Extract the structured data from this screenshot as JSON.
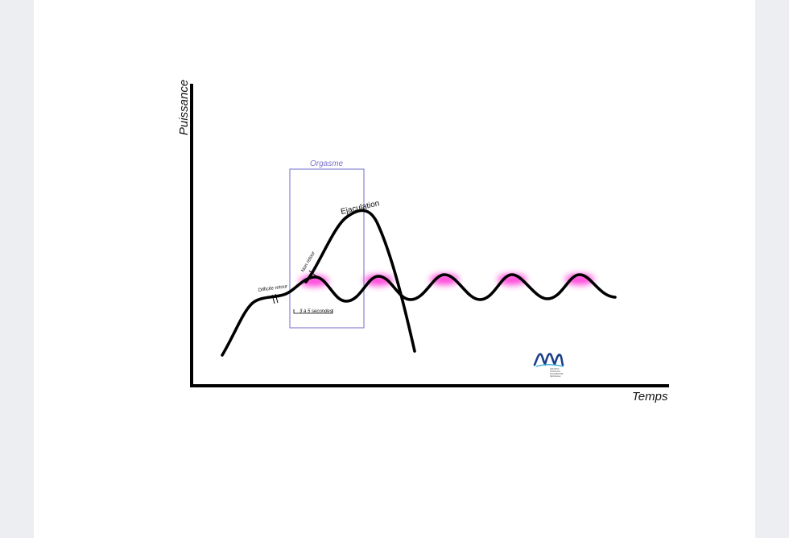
{
  "diagram": {
    "y_axis_label": "Puissance",
    "x_axis_label": "Temps",
    "box_label": "Orgasme",
    "peak_label": "Ejaculation",
    "point_of_no_return_label": "Non retour",
    "difficult_return_label": "Difficile retour",
    "interval_label": "3 à 5 secondes",
    "colors": {
      "curve": "#000000",
      "box": "#8a84d6",
      "box_label": "#7a70c8",
      "glow": "#ff2ad4",
      "logo": "#1c3e8a"
    },
    "logo": {
      "icon": "waves-logo-icon",
      "text_lines": [
        "INSTITUT",
        "FRANÇAIS",
        "D'HARMONIE",
        "SEXUELLE"
      ]
    }
  }
}
